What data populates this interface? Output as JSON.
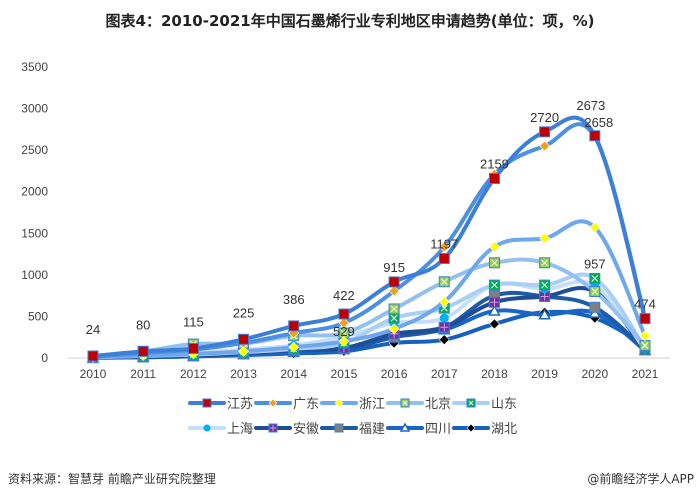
{
  "title": "图表4：2010-2021年中国石墨烯行业专利地区申请趋势(单位：项，%)",
  "source": "资料来源：智慧芽 前瞻产业研究院整理",
  "brand": "@前瞻经济学人APP",
  "watermark": "前瞻产业研究院",
  "chart_data": {
    "type": "line",
    "title": "图表4：2010-2021年中国石墨烯行业专利地区申请趋势(单位：项，%)",
    "xlabel": "",
    "ylabel": "",
    "categories": [
      "2010",
      "2011",
      "2012",
      "2013",
      "2014",
      "2015",
      "2016",
      "2017",
      "2018",
      "2019",
      "2020",
      "2021"
    ],
    "ylim": [
      0,
      3500
    ],
    "yticks": [
      0,
      500,
      1000,
      1500,
      2000,
      2500,
      3000,
      3500
    ],
    "grid": false,
    "legend_position": "bottom",
    "smooth": true,
    "series": [
      {
        "name": "江苏",
        "line_color": "#3c7fd8",
        "marker": "square",
        "marker_color": "#c00000",
        "values": [
          24,
          80,
          115,
          225,
          386,
          529,
          915,
          1197,
          2159,
          2720,
          2673,
          474
        ],
        "labels": [
          24,
          80,
          115,
          225,
          386,
          529,
          915,
          1197,
          2159,
          2720,
          2673,
          474
        ]
      },
      {
        "name": "广东",
        "line_color": "#4d8fe2",
        "marker": "diamond",
        "marker_color": "#f0a020",
        "values": [
          15,
          60,
          100,
          180,
          300,
          422,
          805,
          1335,
          2210,
          2550,
          2658,
          500
        ],
        "labels": [
          null,
          null,
          null,
          null,
          null,
          422,
          null,
          null,
          null,
          null,
          2658,
          null
        ]
      },
      {
        "name": "浙江",
        "line_color": "#6ea7eb",
        "marker": "diamond",
        "marker_color": "#ffff00",
        "values": [
          10,
          30,
          50,
          80,
          130,
          200,
          350,
          677,
          1338,
          1440,
          1570,
          268
        ],
        "labels": []
      },
      {
        "name": "北京",
        "line_color": "#93bff1",
        "marker": "square-x",
        "marker_color": "#92d050",
        "values": [
          20,
          80,
          168,
          175,
          268,
          300,
          590,
          917,
          1145,
          1145,
          800,
          150
        ],
        "labels": []
      },
      {
        "name": "山东",
        "line_color": "#aacff5",
        "marker": "square-x",
        "marker_color": "#00b050",
        "values": [
          8,
          25,
          40,
          70,
          110,
          180,
          480,
          600,
          877,
          877,
          957,
          120
        ],
        "labels": [
          null,
          null,
          null,
          null,
          null,
          null,
          null,
          null,
          null,
          null,
          957,
          null
        ]
      },
      {
        "name": "上海",
        "line_color": "#c6dff8",
        "marker": "circle",
        "marker_color": "#00b0f0",
        "values": [
          10,
          30,
          60,
          100,
          150,
          256,
          420,
          480,
          880,
          830,
          870,
          100
        ],
        "labels": []
      },
      {
        "name": "安徽",
        "line_color": "#1f4e99",
        "marker": "square-plus",
        "marker_color": "#7030a0",
        "values": [
          5,
          15,
          30,
          60,
          100,
          120,
          290,
          370,
          670,
          740,
          800,
          100
        ],
        "labels": []
      },
      {
        "name": "福建",
        "line_color": "#1e5aa8",
        "marker": "square",
        "marker_color": "#808080",
        "values": [
          5,
          12,
          25,
          50,
          90,
          110,
          250,
          365,
          750,
          740,
          610,
          100
        ],
        "labels": []
      },
      {
        "name": "四川",
        "line_color": "#1a66c8",
        "marker": "triangle",
        "marker_color": "#ffffff",
        "values": [
          3,
          10,
          20,
          40,
          70,
          100,
          270,
          340,
          565,
          520,
          540,
          90
        ],
        "labels": []
      },
      {
        "name": "湖北",
        "line_color": "#1560c0",
        "marker": "diamond",
        "marker_color": "#000000",
        "values": [
          3,
          8,
          20,
          35,
          55,
          80,
          180,
          220,
          410,
          550,
          480,
          150
        ],
        "labels": []
      }
    ]
  }
}
